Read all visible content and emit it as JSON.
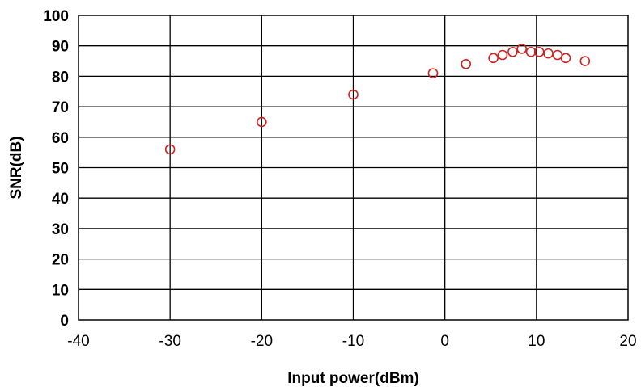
{
  "chart_data": {
    "type": "scatter",
    "title": "",
    "xlabel": "Input power(dBm)",
    "ylabel": "SNR(dB)",
    "xlim": [
      -40,
      20
    ],
    "ylim": [
      0,
      100
    ],
    "xticks": [
      "-40",
      "-30",
      "-20",
      "-10",
      "0",
      "10",
      "20"
    ],
    "yticks": [
      "0",
      "10",
      "20",
      "30",
      "40",
      "50",
      "60",
      "70",
      "80",
      "90",
      "100"
    ],
    "grid": true,
    "marker": "open-circle",
    "marker_color": "#cc2222",
    "series": [
      {
        "x": [
          -30,
          -20,
          -10,
          -1.3,
          2.3,
          5.3,
          6.3,
          7.4,
          8.4,
          9.4,
          10.3,
          11.3,
          12.3,
          13.2,
          15.3
        ],
        "y": [
          56,
          65,
          74,
          81,
          84,
          86,
          87,
          88,
          89,
          88,
          88,
          87.5,
          87,
          86,
          85
        ]
      }
    ]
  }
}
